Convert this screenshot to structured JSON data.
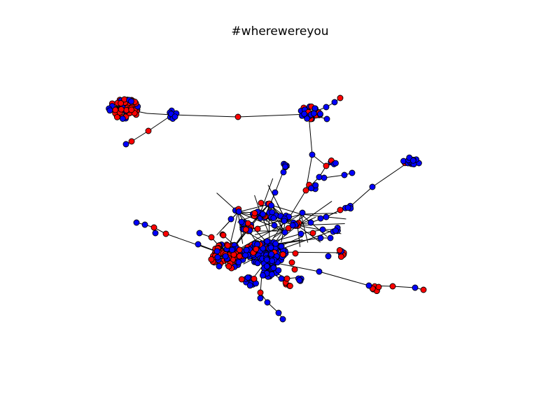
{
  "title": "#wherewereyou",
  "colors": {
    "background": "#ffffff",
    "node_red": "#ff0000",
    "node_blue": "#0000ff",
    "node_outline": "#000000",
    "edge": "#000000"
  }
}
